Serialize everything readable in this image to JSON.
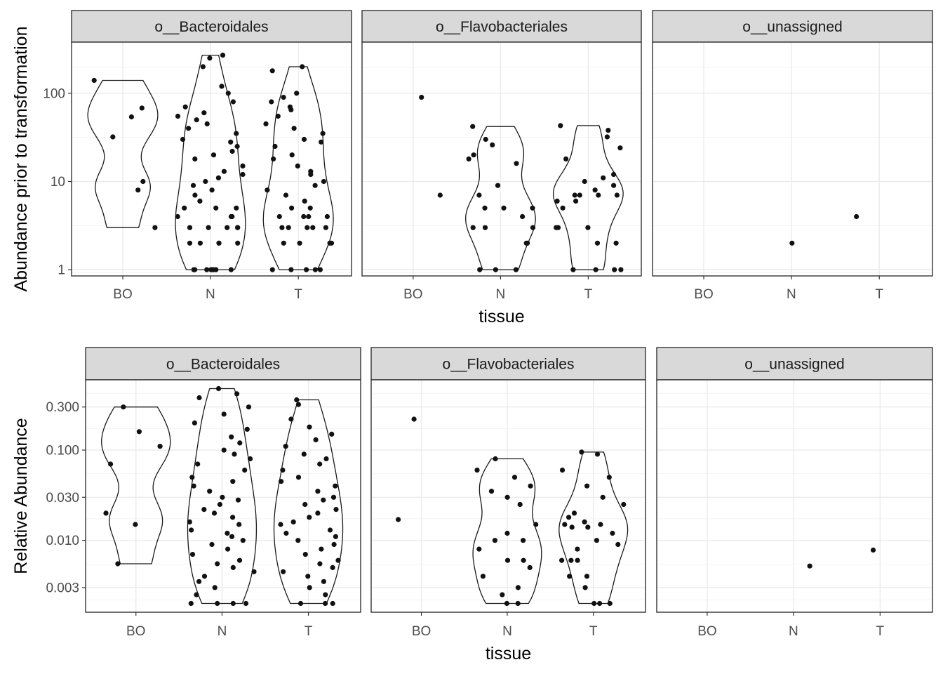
{
  "chart_data": [
    {
      "type": "violin",
      "scale": "log10",
      "ylabel": "Abundance prior to transformation",
      "xlabel": "",
      "yticks": [
        {
          "value": 1,
          "label": "1"
        },
        {
          "value": 10,
          "label": "10"
        },
        {
          "value": 100,
          "label": "100"
        }
      ],
      "ylim": [
        0.85,
        380
      ],
      "categories": [
        "BO",
        "N",
        "T"
      ],
      "panels": [
        {
          "label": "o__Bacteroidales",
          "groups": [
            {
              "category": "BO",
              "range": [
                3,
                140
              ],
              "points": [
                140,
                68,
                54,
                32,
                10,
                8,
                3
              ]
            },
            {
              "category": "N",
              "range": [
                1,
                270
              ],
              "points": [
                270,
                250,
                200,
                120,
                100,
                80,
                70,
                60,
                55,
                50,
                45,
                40,
                35,
                30,
                28,
                25,
                22,
                20,
                18,
                15,
                13,
                12,
                11,
                10,
                9,
                8,
                7,
                6,
                5,
                5,
                5,
                4,
                4,
                4,
                3,
                3,
                3,
                3,
                3,
                2,
                2,
                2,
                2,
                2,
                1,
                1,
                1,
                1,
                1,
                1,
                1,
                1
              ]
            },
            {
              "category": "T",
              "range": [
                1,
                200
              ],
              "points": [
                200,
                180,
                100,
                90,
                80,
                70,
                65,
                55,
                45,
                40,
                35,
                30,
                28,
                25,
                20,
                18,
                15,
                13,
                12,
                10,
                9,
                8,
                7,
                6,
                5,
                5,
                4,
                4,
                4,
                4,
                3,
                3,
                3,
                3,
                3,
                2,
                2,
                2,
                2,
                1,
                1,
                1,
                1,
                1
              ]
            }
          ]
        },
        {
          "label": "o__Flavobacteriales",
          "groups": [
            {
              "category": "BO",
              "range": null,
              "points": [
                90,
                7
              ]
            },
            {
              "category": "N",
              "range": [
                1,
                42
              ],
              "points": [
                42,
                30,
                26,
                20,
                18,
                16,
                9,
                7,
                5,
                5,
                5,
                4,
                3,
                3,
                3,
                2,
                2,
                1,
                1,
                1
              ]
            },
            {
              "category": "T",
              "range": [
                1,
                43
              ],
              "points": [
                43,
                38,
                32,
                24,
                18,
                12,
                11,
                10,
                9,
                8,
                7,
                7,
                7,
                7,
                6,
                6,
                5,
                3,
                3,
                3,
                2,
                2,
                1,
                1,
                1,
                1
              ]
            }
          ]
        },
        {
          "label": "o__unassigned",
          "groups": [
            {
              "category": "BO",
              "range": null,
              "points": []
            },
            {
              "category": "N",
              "range": null,
              "points": [
                2
              ]
            },
            {
              "category": "T",
              "range": null,
              "points": [
                4
              ]
            }
          ]
        }
      ]
    },
    {
      "type": "violin",
      "scale": "log10",
      "ylabel": "Relative Abundance",
      "xlabel": "tissue",
      "yticks": [
        {
          "value": 0.003,
          "label": "0.003"
        },
        {
          "value": 0.01,
          "label": "0.010"
        },
        {
          "value": 0.03,
          "label": "0.030"
        },
        {
          "value": 0.1,
          "label": "0.100"
        },
        {
          "value": 0.3,
          "label": "0.300"
        }
      ],
      "ylim": [
        0.0016,
        0.6
      ],
      "categories": [
        "BO",
        "N",
        "T"
      ],
      "panels": [
        {
          "label": "o__Bacteroidales",
          "groups": [
            {
              "category": "BO",
              "range": [
                0.0055,
                0.3
              ],
              "points": [
                0.3,
                0.16,
                0.11,
                0.07,
                0.02,
                0.015,
                0.0055
              ]
            },
            {
              "category": "N",
              "range": [
                0.002,
                0.48
              ],
              "points": [
                0.48,
                0.42,
                0.38,
                0.3,
                0.25,
                0.2,
                0.17,
                0.14,
                0.12,
                0.1,
                0.09,
                0.08,
                0.07,
                0.06,
                0.05,
                0.045,
                0.04,
                0.035,
                0.03,
                0.028,
                0.025,
                0.022,
                0.02,
                0.018,
                0.016,
                0.015,
                0.013,
                0.012,
                0.011,
                0.01,
                0.009,
                0.008,
                0.007,
                0.006,
                0.0055,
                0.005,
                0.0045,
                0.004,
                0.0035,
                0.003,
                0.0025,
                0.002,
                0.002,
                0.002,
                0.002
              ]
            },
            {
              "category": "T",
              "range": [
                0.002,
                0.36
              ],
              "points": [
                0.36,
                0.32,
                0.22,
                0.18,
                0.15,
                0.13,
                0.11,
                0.09,
                0.08,
                0.07,
                0.06,
                0.05,
                0.045,
                0.04,
                0.035,
                0.03,
                0.028,
                0.025,
                0.022,
                0.02,
                0.018,
                0.016,
                0.015,
                0.013,
                0.012,
                0.011,
                0.01,
                0.009,
                0.008,
                0.007,
                0.006,
                0.0055,
                0.005,
                0.0045,
                0.004,
                0.0035,
                0.003,
                0.0025,
                0.002,
                0.002,
                0.002
              ]
            }
          ]
        },
        {
          "label": "o__Flavobacteriales",
          "groups": [
            {
              "category": "BO",
              "range": null,
              "points": [
                0.22,
                0.017
              ]
            },
            {
              "category": "N",
              "range": [
                0.002,
                0.08
              ],
              "points": [
                0.08,
                0.06,
                0.05,
                0.04,
                0.035,
                0.03,
                0.025,
                0.015,
                0.012,
                0.01,
                0.01,
                0.008,
                0.006,
                0.006,
                0.005,
                0.004,
                0.003,
                0.0025,
                0.002,
                0.002
              ]
            },
            {
              "category": "T",
              "range": [
                0.002,
                0.095
              ],
              "points": [
                0.095,
                0.09,
                0.06,
                0.05,
                0.04,
                0.03,
                0.025,
                0.02,
                0.018,
                0.016,
                0.015,
                0.015,
                0.014,
                0.014,
                0.012,
                0.01,
                0.009,
                0.008,
                0.006,
                0.006,
                0.006,
                0.004,
                0.004,
                0.003,
                0.002,
                0.002,
                0.002
              ]
            }
          ]
        },
        {
          "label": "o__unassigned",
          "groups": [
            {
              "category": "BO",
              "range": null,
              "points": []
            },
            {
              "category": "N",
              "range": null,
              "points": [
                0.0052
              ]
            },
            {
              "category": "T",
              "range": null,
              "points": [
                0.0078
              ]
            }
          ]
        }
      ]
    }
  ],
  "tissue_label": "tissue"
}
